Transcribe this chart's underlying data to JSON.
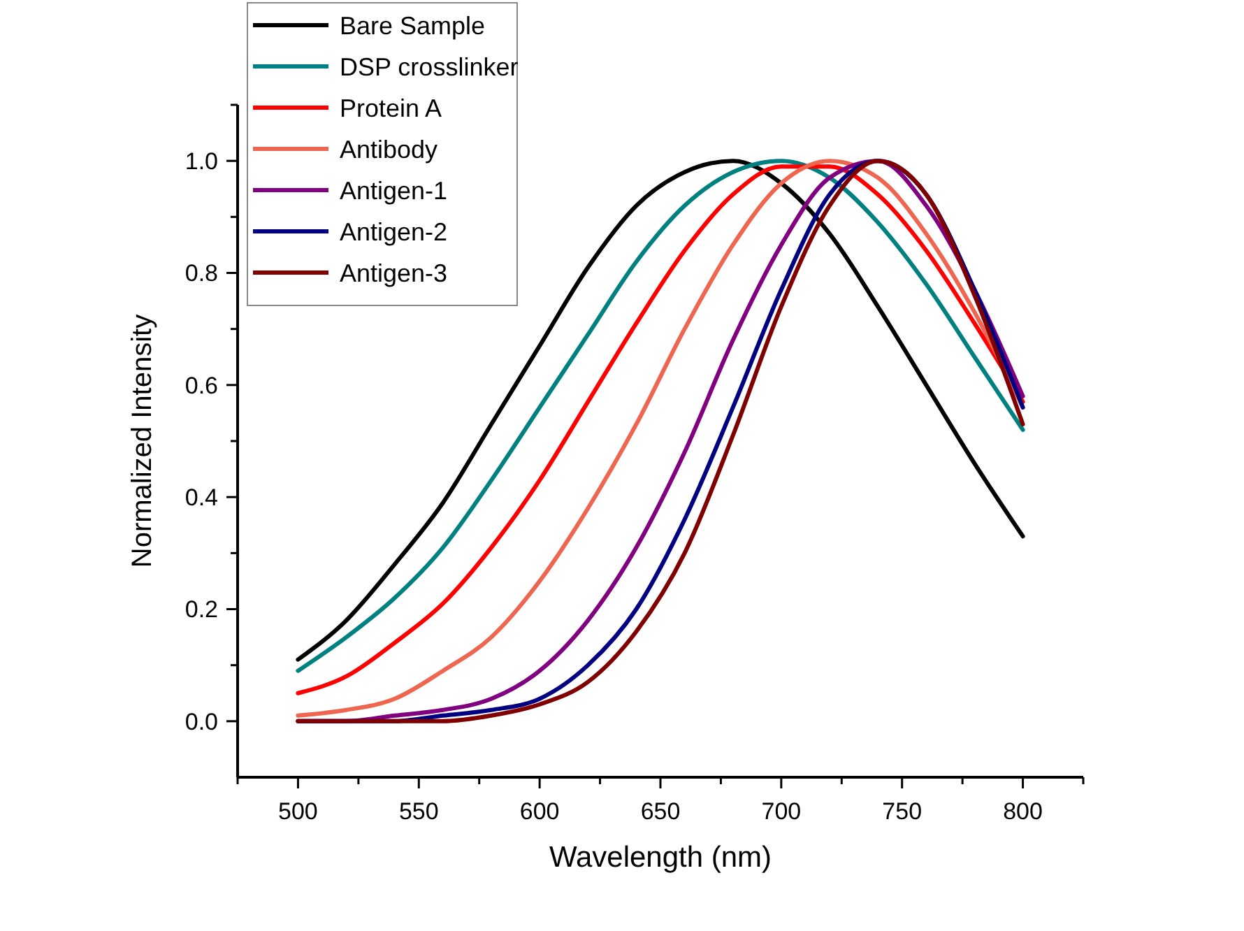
{
  "chart_data": {
    "type": "line",
    "xlabel": "Wavelength (nm)",
    "ylabel": "Normalized Intensity",
    "x": [
      500,
      520,
      540,
      560,
      580,
      600,
      620,
      640,
      660,
      680,
      700,
      720,
      740,
      760,
      780,
      800
    ],
    "series": [
      {
        "name": "Bare Sample",
        "color": "#000000",
        "values": [
          0.11,
          0.18,
          0.28,
          0.39,
          0.53,
          0.67,
          0.81,
          0.92,
          0.98,
          1.0,
          0.96,
          0.87,
          0.74,
          0.6,
          0.46,
          0.33
        ]
      },
      {
        "name": "DSP crosslinker",
        "color": "#008080",
        "values": [
          0.09,
          0.15,
          0.22,
          0.31,
          0.43,
          0.56,
          0.69,
          0.82,
          0.92,
          0.98,
          1.0,
          0.97,
          0.89,
          0.78,
          0.65,
          0.52
        ]
      },
      {
        "name": "Protein A",
        "color": "#ff0000",
        "values": [
          0.05,
          0.08,
          0.14,
          0.21,
          0.31,
          0.43,
          0.57,
          0.71,
          0.84,
          0.94,
          0.99,
          0.99,
          0.94,
          0.84,
          0.71,
          0.57
        ]
      },
      {
        "name": "Antibody",
        "color": "#ee6650",
        "values": [
          0.01,
          0.02,
          0.04,
          0.09,
          0.15,
          0.25,
          0.38,
          0.53,
          0.7,
          0.85,
          0.96,
          1.0,
          0.97,
          0.87,
          0.73,
          0.56
        ]
      },
      {
        "name": "Antigen-1",
        "color": "#800080",
        "values": [
          0.0,
          0.0,
          0.01,
          0.02,
          0.04,
          0.09,
          0.18,
          0.31,
          0.48,
          0.68,
          0.85,
          0.97,
          1.0,
          0.92,
          0.77,
          0.58
        ]
      },
      {
        "name": "Antigen-2",
        "color": "#000080",
        "values": [
          0.0,
          0.0,
          0.0,
          0.01,
          0.02,
          0.04,
          0.1,
          0.2,
          0.36,
          0.56,
          0.77,
          0.94,
          1.0,
          0.94,
          0.77,
          0.56
        ]
      },
      {
        "name": "Antigen-3",
        "color": "#800000",
        "values": [
          0.0,
          0.0,
          0.0,
          0.0,
          0.01,
          0.03,
          0.07,
          0.16,
          0.3,
          0.51,
          0.74,
          0.92,
          1.0,
          0.94,
          0.76,
          0.53
        ]
      }
    ],
    "xlim": [
      475,
      825
    ],
    "xticks": [
      {
        "value": 475,
        "label": null
      },
      500,
      {
        "value": 525,
        "label": null
      },
      550,
      {
        "value": 575,
        "label": null
      },
      600,
      {
        "value": 625,
        "label": null
      },
      650,
      {
        "value": 675,
        "label": null
      },
      700,
      {
        "value": 725,
        "label": null
      },
      750,
      {
        "value": 775,
        "label": null
      },
      800,
      {
        "value": 825,
        "label": null
      }
    ],
    "ylim": [
      -0.1,
      1.1
    ],
    "yticks": [
      {
        "value": 0,
        "label": "0.0"
      },
      {
        "value": 0.1,
        "label": null
      },
      0.2,
      {
        "value": 0.3,
        "label": null
      },
      0.4,
      {
        "value": 0.5,
        "label": null
      },
      0.6,
      {
        "value": 0.7,
        "label": null
      },
      0.8,
      {
        "value": 0.9,
        "label": null
      },
      {
        "value": 1,
        "label": "1.0"
      },
      {
        "value": 1.1,
        "label": null
      }
    ],
    "legend": "top left",
    "grid": false,
    "marker": "none",
    "line_style": "solid"
  }
}
